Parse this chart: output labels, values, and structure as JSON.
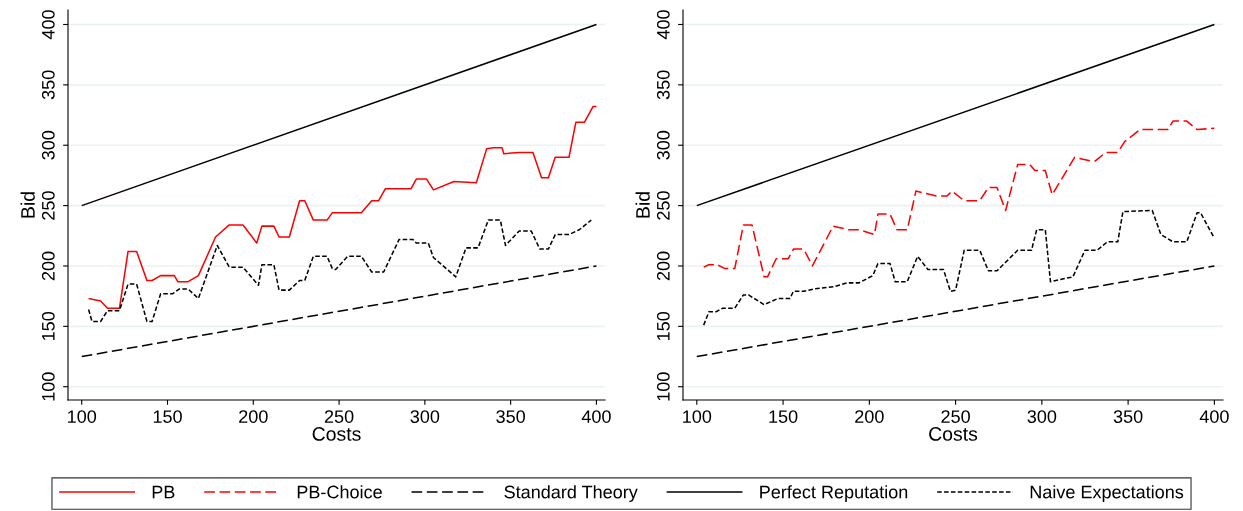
{
  "chart_data": [
    {
      "type": "line",
      "xlabel": "Costs",
      "ylabel": "Bid",
      "xlim": [
        92,
        405
      ],
      "ylim": [
        89,
        412
      ],
      "xticks": [
        100,
        150,
        200,
        250,
        300,
        350,
        400
      ],
      "yticks": [
        100,
        150,
        200,
        250,
        300,
        350,
        400
      ],
      "grid": "y",
      "legend": "bottom",
      "series": [
        {
          "name": "PB",
          "color": "#ff0000",
          "line_style": "solid",
          "x": [
            104,
            111,
            115,
            122,
            127,
            132,
            138,
            141,
            146,
            154,
            156,
            162,
            168,
            178,
            186,
            194,
            202,
            205,
            212,
            215,
            221,
            227,
            230,
            235,
            243,
            246,
            263,
            269,
            273,
            277,
            292,
            295,
            301,
            305,
            317,
            330,
            336,
            340,
            345,
            346,
            355,
            363,
            368,
            372,
            376,
            384,
            388,
            393,
            398,
            400
          ],
          "values": [
            173,
            171,
            165,
            165,
            212,
            212,
            188,
            188,
            192,
            192,
            187,
            187,
            192,
            224,
            234,
            234,
            219,
            233,
            233,
            224,
            224,
            254,
            254,
            238,
            238,
            244,
            244,
            254,
            254,
            264,
            264,
            272,
            272,
            263,
            270,
            269,
            297,
            298,
            298,
            293,
            294,
            294,
            273,
            273,
            290,
            290,
            319,
            319,
            332,
            332
          ]
        },
        {
          "name": "Standard Theory",
          "color": "#000000",
          "line_style": "dashed",
          "x": [
            100,
            400
          ],
          "values": [
            125,
            200
          ]
        },
        {
          "name": "Perfect Reputation",
          "color": "#000000",
          "line_style": "solid",
          "x": [
            100,
            400
          ],
          "values": [
            250,
            400
          ]
        },
        {
          "name": "Naive Expectations",
          "color": "#000000",
          "line_style": "dotted",
          "x": [
            104,
            106,
            111,
            115,
            122,
            127,
            132,
            138,
            141,
            146,
            153,
            157,
            162,
            168,
            179,
            186,
            194,
            203,
            205,
            212,
            215,
            221,
            227,
            230,
            235,
            243,
            246,
            248,
            255,
            263,
            269,
            276,
            285,
            293,
            295,
            302,
            305,
            318,
            324,
            331,
            337,
            344,
            347,
            355,
            362,
            367,
            372,
            376,
            384,
            390,
            397
          ],
          "values": [
            164,
            154,
            154,
            163,
            163,
            185,
            185,
            154,
            154,
            177,
            177,
            181,
            181,
            173,
            217,
            199,
            199,
            184,
            201,
            201,
            180,
            180,
            188,
            188,
            208,
            208,
            198,
            197,
            208,
            208,
            195,
            195,
            222,
            222,
            219,
            219,
            207,
            191,
            215,
            215,
            238,
            238,
            217,
            229,
            229,
            214,
            214,
            226,
            226,
            230,
            238
          ]
        }
      ]
    },
    {
      "type": "line",
      "xlabel": "Costs",
      "ylabel": "Bid",
      "xlim": [
        92,
        405
      ],
      "ylim": [
        89,
        412
      ],
      "xticks": [
        100,
        150,
        200,
        250,
        300,
        350,
        400
      ],
      "yticks": [
        100,
        150,
        200,
        250,
        300,
        350,
        400
      ],
      "grid": "y",
      "legend": "bottom",
      "series": [
        {
          "name": "PB-Choice",
          "color": "#ff0000",
          "line_style": "dashed",
          "x": [
            104,
            107,
            112,
            116,
            122,
            127,
            132,
            139,
            141,
            146,
            153,
            156,
            162,
            167,
            179,
            188,
            194,
            203,
            205,
            212,
            216,
            222,
            227,
            239,
            245,
            248,
            255,
            264,
            269,
            274,
            279,
            286,
            293,
            296,
            302,
            306,
            319,
            328,
            331,
            337,
            344,
            348,
            357,
            373,
            376,
            384,
            390,
            400
          ],
          "values": [
            199,
            201,
            201,
            198,
            198,
            234,
            234,
            191,
            191,
            206,
            206,
            214,
            214,
            200,
            233,
            230,
            230,
            226,
            243,
            243,
            230,
            230,
            262,
            258,
            258,
            262,
            254,
            254,
            265,
            265,
            246,
            284,
            284,
            279,
            279,
            259,
            290,
            287,
            287,
            294,
            294,
            303,
            313,
            313,
            320,
            320,
            313,
            314
          ]
        },
        {
          "color": "#000000",
          "line_style": "dashed",
          "x": [
            100,
            400
          ],
          "values": [
            125,
            200
          ]
        },
        {
          "color": "#000000",
          "line_style": "solid",
          "x": [
            100,
            400
          ],
          "values": [
            250,
            400
          ]
        },
        {
          "color": "#000000",
          "line_style": "dotted",
          "x": [
            104,
            107,
            111,
            115,
            122,
            127,
            130,
            139,
            147,
            154,
            156,
            162,
            168,
            180,
            187,
            194,
            202,
            205,
            212,
            215,
            222,
            228,
            234,
            243,
            247,
            250,
            255,
            264,
            269,
            274,
            286,
            294,
            297,
            302,
            305,
            318,
            325,
            332,
            338,
            344,
            347,
            364,
            369,
            376,
            384,
            390,
            392,
            400
          ],
          "values": [
            151,
            162,
            162,
            165,
            165,
            176,
            176,
            168,
            173,
            173,
            179,
            179,
            181,
            183,
            186,
            186,
            192,
            202,
            202,
            187,
            187,
            208,
            197,
            197,
            179,
            180,
            213,
            213,
            196,
            196,
            213,
            213,
            230,
            230,
            187,
            191,
            213,
            213,
            220,
            220,
            245,
            246,
            226,
            220,
            220,
            244,
            244,
            223
          ]
        }
      ]
    }
  ]
}
